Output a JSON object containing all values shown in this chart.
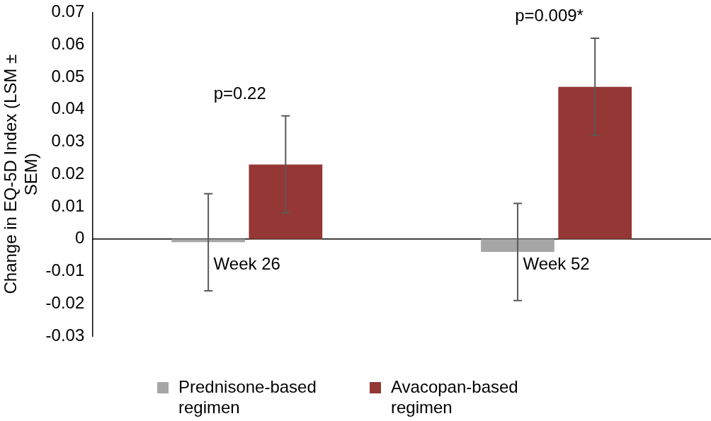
{
  "chart_data": {
    "type": "bar",
    "ylabel": "Change in EQ-5D Index (LSM ± SEM)",
    "categories": [
      "Week 26",
      "Week 52"
    ],
    "series": [
      {
        "name": "Prednisone-based regimen",
        "color": "#a6a6a6",
        "values": [
          -0.001,
          -0.004
        ],
        "errors": [
          0.015,
          0.015
        ]
      },
      {
        "name": "Avacopan-based regimen",
        "color": "#953735",
        "values": [
          0.023,
          0.047
        ],
        "errors": [
          0.015,
          0.015
        ]
      }
    ],
    "ylim": [
      -0.03,
      0.07
    ],
    "yticks": [
      -0.03,
      -0.02,
      -0.01,
      0,
      0.01,
      0.02,
      0.03,
      0.04,
      0.05,
      0.06,
      0.07
    ],
    "grid": false,
    "legend": "bottom",
    "annotations": [
      "p=0.22",
      "p=0.009*"
    ]
  }
}
